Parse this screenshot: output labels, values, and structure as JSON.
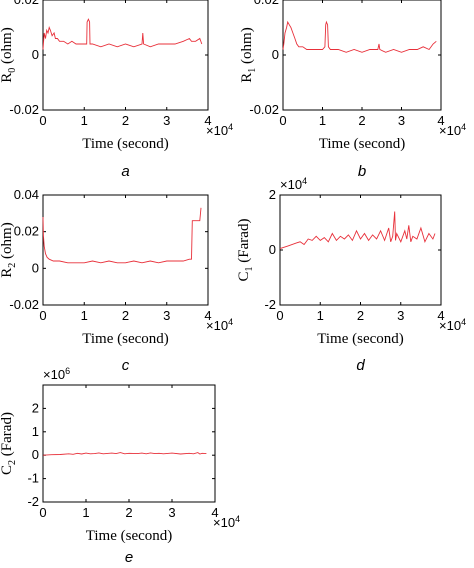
{
  "colors": {
    "series": "#e8303a",
    "axis": "#000000"
  },
  "chart_data": [
    {
      "id": "a",
      "type": "line",
      "caption": "a",
      "ylabel": "R",
      "ylabel_sub": "0",
      "ylabel_unit": " (ohm)",
      "xlabel": "Time (second)",
      "xlim": [
        0,
        40000
      ],
      "ylim": [
        -0.02,
        0.02
      ],
      "xticks": [
        0,
        1,
        2,
        3,
        4
      ],
      "xtick_multiplier": "×10",
      "xtick_exp": "4",
      "yticks": [
        "-0.02",
        "0",
        "0.02"
      ],
      "ytick_values": [
        -0.02,
        0,
        0.02
      ],
      "y_exp": "",
      "series": [
        {
          "values": [
            [
              0,
              0.002
            ],
            [
              100,
              0.004
            ],
            [
              300,
              0.008
            ],
            [
              600,
              0.006
            ],
            [
              900,
              0.009
            ],
            [
              1200,
              0.008
            ],
            [
              1500,
              0.01
            ],
            [
              1800,
              0.009
            ],
            [
              2200,
              0.007
            ],
            [
              2700,
              0.008
            ],
            [
              3000,
              0.006
            ],
            [
              3500,
              0.006
            ],
            [
              4000,
              0.005
            ],
            [
              5000,
              0.005
            ],
            [
              6000,
              0.004
            ],
            [
              7000,
              0.005
            ],
            [
              8000,
              0.004
            ],
            [
              9000,
              0.004
            ],
            [
              10000,
              0.004
            ],
            [
              10600,
              0.004
            ],
            [
              10700,
              0.012
            ],
            [
              11000,
              0.013
            ],
            [
              11300,
              0.012
            ],
            [
              11400,
              0.004
            ],
            [
              12000,
              0.004
            ],
            [
              14000,
              0.003
            ],
            [
              16000,
              0.004
            ],
            [
              18000,
              0.003
            ],
            [
              20000,
              0.004
            ],
            [
              22000,
              0.003
            ],
            [
              24000,
              0.004
            ],
            [
              24200,
              0.008
            ],
            [
              24400,
              0.004
            ],
            [
              26000,
              0.003
            ],
            [
              28000,
              0.004
            ],
            [
              30000,
              0.004
            ],
            [
              32000,
              0.004
            ],
            [
              34000,
              0.005
            ],
            [
              35500,
              0.006
            ],
            [
              36000,
              0.005
            ],
            [
              37000,
              0.005
            ],
            [
              38000,
              0.006
            ],
            [
              38500,
              0.004
            ]
          ]
        }
      ]
    },
    {
      "id": "b",
      "type": "line",
      "caption": "b",
      "ylabel": "R",
      "ylabel_sub": "1",
      "ylabel_unit": " (ohm)",
      "xlabel": "Time (second)",
      "xlim": [
        0,
        40000
      ],
      "ylim": [
        -0.02,
        0.02
      ],
      "xticks": [
        0,
        1,
        2,
        3,
        4
      ],
      "xtick_multiplier": "×10",
      "xtick_exp": "4",
      "yticks": [
        "-0.02",
        "0",
        "0.02"
      ],
      "ytick_values": [
        -0.02,
        0,
        0.02
      ],
      "y_exp": "",
      "series": [
        {
          "values": [
            [
              0,
              0.002
            ],
            [
              200,
              0.004
            ],
            [
              500,
              0.008
            ],
            [
              900,
              0.01
            ],
            [
              1200,
              0.012
            ],
            [
              1600,
              0.011
            ],
            [
              2000,
              0.01
            ],
            [
              2500,
              0.008
            ],
            [
              3000,
              0.006
            ],
            [
              3500,
              0.004
            ],
            [
              4000,
              0.003
            ],
            [
              5000,
              0.003
            ],
            [
              6000,
              0.002
            ],
            [
              8000,
              0.002
            ],
            [
              9000,
              0.002
            ],
            [
              10000,
              0.002
            ],
            [
              10600,
              0.003
            ],
            [
              10800,
              0.011
            ],
            [
              11000,
              0.012
            ],
            [
              11300,
              0.011
            ],
            [
              11500,
              0.003
            ],
            [
              12000,
              0.002
            ],
            [
              14000,
              0.002
            ],
            [
              16000,
              0.001
            ],
            [
              18000,
              0.002
            ],
            [
              20000,
              0.001
            ],
            [
              22000,
              0.002
            ],
            [
              24000,
              0.002
            ],
            [
              24300,
              0.004
            ],
            [
              24500,
              0.002
            ],
            [
              26000,
              0.001
            ],
            [
              28000,
              0.002
            ],
            [
              30000,
              0.001
            ],
            [
              32000,
              0.002
            ],
            [
              34000,
              0.002
            ],
            [
              35500,
              0.003
            ],
            [
              37000,
              0.002
            ],
            [
              38000,
              0.004
            ],
            [
              38800,
              0.005
            ]
          ]
        }
      ]
    },
    {
      "id": "c",
      "type": "line",
      "caption": "c",
      "ylabel": "R",
      "ylabel_sub": "2",
      "ylabel_unit": " (ohm)",
      "xlabel": "Time (second)",
      "xlim": [
        0,
        40000
      ],
      "ylim": [
        -0.02,
        0.04
      ],
      "xticks": [
        0,
        1,
        2,
        3,
        4
      ],
      "xtick_multiplier": "×10",
      "xtick_exp": "4",
      "yticks": [
        "-0.02",
        "0",
        "0.02",
        "0.04"
      ],
      "ytick_values": [
        -0.02,
        0,
        0.02,
        0.04
      ],
      "y_exp": "",
      "series": [
        {
          "values": [
            [
              0,
              0.028
            ],
            [
              100,
              0.018
            ],
            [
              300,
              0.012
            ],
            [
              600,
              0.008
            ],
            [
              1000,
              0.006
            ],
            [
              1500,
              0.005
            ],
            [
              2500,
              0.004
            ],
            [
              4000,
              0.004
            ],
            [
              6000,
              0.003
            ],
            [
              8000,
              0.003
            ],
            [
              10000,
              0.003
            ],
            [
              12000,
              0.004
            ],
            [
              14000,
              0.003
            ],
            [
              16000,
              0.004
            ],
            [
              18000,
              0.003
            ],
            [
              20000,
              0.003
            ],
            [
              22000,
              0.004
            ],
            [
              24000,
              0.003
            ],
            [
              26000,
              0.004
            ],
            [
              28000,
              0.003
            ],
            [
              30000,
              0.004
            ],
            [
              32000,
              0.004
            ],
            [
              34000,
              0.004
            ],
            [
              35500,
              0.005
            ],
            [
              36000,
              0.005
            ],
            [
              36200,
              0.026
            ],
            [
              37000,
              0.026
            ],
            [
              38000,
              0.026
            ],
            [
              38300,
              0.033
            ]
          ]
        }
      ]
    },
    {
      "id": "d",
      "type": "line",
      "caption": "d",
      "ylabel": "C",
      "ylabel_sub": "1",
      "ylabel_unit": " (Farad)",
      "xlabel": "Time (second)",
      "xlim": [
        0,
        40000
      ],
      "ylim": [
        -20000,
        20000
      ],
      "xticks": [
        0,
        1,
        2,
        3,
        4
      ],
      "xtick_multiplier": "×10",
      "xtick_exp": "4",
      "yticks": [
        "-2",
        "0",
        "2"
      ],
      "ytick_values": [
        -20000,
        0,
        20000
      ],
      "y_exp": "4",
      "series": [
        {
          "values": [
            [
              0,
              500
            ],
            [
              2000,
              1500
            ],
            [
              4000,
              2500
            ],
            [
              5000,
              3000
            ],
            [
              6000,
              2000
            ],
            [
              7000,
              4000
            ],
            [
              8000,
              3500
            ],
            [
              9000,
              5000
            ],
            [
              10000,
              3500
            ],
            [
              11000,
              4500
            ],
            [
              12000,
              3000
            ],
            [
              13000,
              6000
            ],
            [
              14000,
              3500
            ],
            [
              15000,
              5000
            ],
            [
              16000,
              4000
            ],
            [
              17000,
              5500
            ],
            [
              18000,
              3500
            ],
            [
              19000,
              7000
            ],
            [
              20000,
              4000
            ],
            [
              21000,
              6000
            ],
            [
              22000,
              3500
            ],
            [
              23000,
              5500
            ],
            [
              24000,
              4000
            ],
            [
              25000,
              7000
            ],
            [
              26000,
              3500
            ],
            [
              27000,
              8000
            ],
            [
              27500,
              3000
            ],
            [
              28000,
              5000
            ],
            [
              28500,
              14000
            ],
            [
              28700,
              3500
            ],
            [
              29000,
              6000
            ],
            [
              30000,
              3000
            ],
            [
              31000,
              7000
            ],
            [
              31500,
              4000
            ],
            [
              32000,
              9000
            ],
            [
              32500,
              3000
            ],
            [
              33000,
              5000
            ],
            [
              34000,
              4000
            ],
            [
              35000,
              8000
            ],
            [
              36000,
              3000
            ],
            [
              37000,
              6000
            ],
            [
              38000,
              4000
            ],
            [
              38500,
              6000
            ]
          ]
        }
      ]
    },
    {
      "id": "e",
      "type": "line",
      "caption": "e",
      "ylabel": "C",
      "ylabel_sub": "2",
      "ylabel_unit": " (Farad)",
      "xlabel": "Time (second)",
      "xlim": [
        0,
        40000
      ],
      "ylim": [
        -2000000,
        3000000
      ],
      "xticks": [
        0,
        1,
        2,
        3,
        4
      ],
      "xtick_multiplier": "×10",
      "xtick_exp": "4",
      "yticks": [
        "-2",
        "-1",
        "0",
        "1",
        "2"
      ],
      "ytick_values": [
        -2000000,
        -1000000,
        0,
        1000000,
        2000000
      ],
      "y_exp": "6",
      "series": [
        {
          "values": [
            [
              0,
              0
            ],
            [
              2000,
              20000
            ],
            [
              4000,
              30000
            ],
            [
              6000,
              60000
            ],
            [
              7000,
              40000
            ],
            [
              8000,
              80000
            ],
            [
              9000,
              50000
            ],
            [
              10000,
              90000
            ],
            [
              11000,
              60000
            ],
            [
              12000,
              70000
            ],
            [
              13000,
              100000
            ],
            [
              14000,
              60000
            ],
            [
              16000,
              90000
            ],
            [
              17000,
              70000
            ],
            [
              18000,
              110000
            ],
            [
              19000,
              60000
            ],
            [
              20000,
              80000
            ],
            [
              22000,
              70000
            ],
            [
              23000,
              90000
            ],
            [
              24000,
              60000
            ],
            [
              25000,
              100000
            ],
            [
              26000,
              70000
            ],
            [
              27000,
              80000
            ],
            [
              28000,
              60000
            ],
            [
              30000,
              90000
            ],
            [
              32000,
              50000
            ],
            [
              34000,
              80000
            ],
            [
              35000,
              60000
            ],
            [
              36000,
              110000
            ],
            [
              36500,
              50000
            ],
            [
              37000,
              80000
            ],
            [
              38000,
              70000
            ]
          ]
        }
      ]
    }
  ]
}
